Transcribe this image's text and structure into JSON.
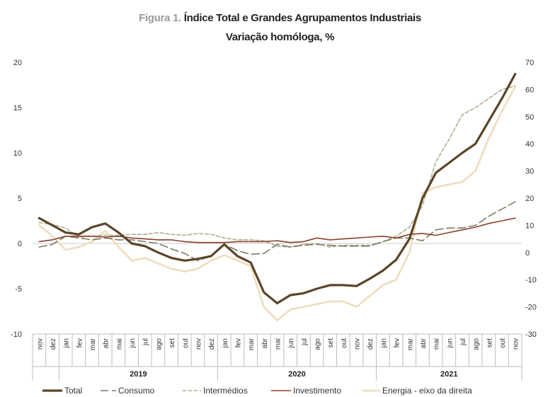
{
  "header": {
    "figure_label": "Figura 1.",
    "title": "Índice Total e Grandes Agrupamentos Industriais",
    "subtitle": "Variação homóloga, %"
  },
  "chart_data": {
    "type": "line",
    "title": "Índice Total e Grandes Agrupamentos Industriais",
    "subtitle": "Variação homóloga, %",
    "categories": [
      "nov",
      "dez",
      "jan",
      "fev",
      "mar",
      "abr",
      "mai",
      "jun",
      "jul",
      "ago",
      "set",
      "out",
      "nov",
      "dez",
      "jan",
      "fev",
      "mar",
      "abr",
      "mai",
      "jun",
      "jul",
      "ago",
      "set",
      "out",
      "nov",
      "dez",
      "jan",
      "fev",
      "mar",
      "abr",
      "mai",
      "jun",
      "jul",
      "ago",
      "set",
      "out",
      "nov"
    ],
    "year_groups": [
      {
        "label": "",
        "start": 0,
        "end": 1
      },
      {
        "label": "2019",
        "start": 2,
        "end": 13
      },
      {
        "label": "2020",
        "start": 14,
        "end": 25
      },
      {
        "label": "2021",
        "start": 26,
        "end": 36
      }
    ],
    "y_left": {
      "min": -10,
      "max": 20,
      "ticks": [
        -10,
        -5,
        0,
        5,
        10,
        15,
        20
      ],
      "tick_labels": [
        "-10",
        "-5",
        "0",
        "5",
        "10",
        "15",
        "20"
      ]
    },
    "y_right": {
      "min": -30,
      "max": 70,
      "ticks": [
        -30,
        -20,
        -10,
        0,
        10,
        20,
        30,
        40,
        50,
        60,
        70
      ],
      "tick_labels": [
        "-30",
        "-20",
        "-10",
        "0",
        "10",
        "20",
        "30",
        "40",
        "50",
        "60",
        "70"
      ]
    },
    "series": [
      {
        "name": "Total",
        "axis": "left",
        "color": "#5a4527",
        "dash": "solid",
        "values": [
          2.8,
          2.0,
          1.2,
          1.0,
          1.8,
          2.2,
          1.2,
          0.0,
          -0.3,
          -1.0,
          -1.6,
          -1.9,
          -1.7,
          -1.4,
          -0.1,
          -1.4,
          -2.1,
          -5.4,
          -6.6,
          -5.7,
          -5.5,
          -5.0,
          -4.6,
          -4.6,
          -4.7,
          -3.9,
          -3.0,
          -1.8,
          0.5,
          5.0,
          7.8,
          8.9,
          10.0,
          11.0,
          13.5,
          16.0,
          18.7
        ]
      },
      {
        "name": "Consumo",
        "axis": "left",
        "color": "#7a7d64",
        "dash": "long",
        "values": [
          -0.4,
          -0.1,
          0.8,
          0.6,
          0.4,
          0.6,
          0.4,
          0.4,
          0.2,
          0.0,
          -0.6,
          -1.1,
          -1.9,
          -1.4,
          -0.1,
          -0.8,
          -1.2,
          -1.1,
          -0.1,
          -0.4,
          -0.2,
          -0.1,
          -0.2,
          -0.3,
          -0.3,
          -0.3,
          0.2,
          0.6,
          0.6,
          0.3,
          1.5,
          1.7,
          1.7,
          2.0,
          3.0,
          3.8,
          4.6
        ]
      },
      {
        "name": "Intermédios",
        "axis": "left",
        "color": "#aab08e",
        "dash": "short",
        "values": [
          2.3,
          2.1,
          1.7,
          0.7,
          0.8,
          0.9,
          0.9,
          1.0,
          1.0,
          1.2,
          1.0,
          0.9,
          1.1,
          1.0,
          0.6,
          0.4,
          0.4,
          0.3,
          -0.3,
          -0.4,
          -0.1,
          0.0,
          -0.4,
          -0.2,
          -0.2,
          -0.2,
          0.2,
          0.8,
          1.8,
          4.2,
          9.0,
          11.5,
          14.2,
          15.0,
          16.0,
          17.0,
          17.4
        ]
      },
      {
        "name": "Investimento",
        "axis": "left",
        "color": "#8c3f2c",
        "dash": "solid",
        "values": [
          0.2,
          0.4,
          0.8,
          0.8,
          0.8,
          0.7,
          0.8,
          0.6,
          0.5,
          0.4,
          0.4,
          0.2,
          0.1,
          0.1,
          0.1,
          0.2,
          0.2,
          0.2,
          0.3,
          0.1,
          0.2,
          0.6,
          0.4,
          0.5,
          0.6,
          0.7,
          0.8,
          0.6,
          1.0,
          1.1,
          0.9,
          1.2,
          1.5,
          1.8,
          2.2,
          2.5,
          2.8
        ]
      },
      {
        "name": "Energia - eixo da direita",
        "axis": "right",
        "color": "#efdcbc",
        "dash": "solid",
        "values": [
          10,
          6,
          1,
          2,
          4,
          8,
          2,
          -3,
          -2,
          -4,
          -6,
          -7,
          -6,
          -3,
          -1,
          -3,
          -5,
          -20,
          -25,
          -21,
          -20,
          -19,
          -18,
          -18,
          -20,
          -16,
          -12,
          -10,
          0,
          22,
          24,
          25,
          26,
          30,
          42,
          52,
          61
        ]
      }
    ],
    "legend_position": "bottom",
    "grid": false
  }
}
